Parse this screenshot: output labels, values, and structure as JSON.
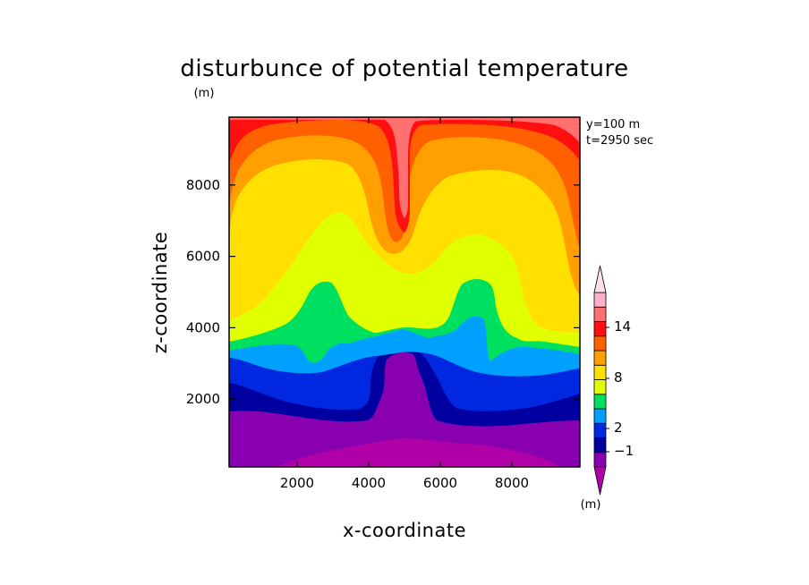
{
  "chart_data": {
    "type": "heatmap",
    "title": "disturbunce of potential temperature",
    "title_unit": "(m)",
    "xlabel": "x-coordinate",
    "ylabel": "z-coordinate",
    "xlim": [
      100,
      9900
    ],
    "ylim": [
      100,
      9900
    ],
    "xticks": [
      2000,
      4000,
      6000,
      8000
    ],
    "yticks": [
      2000,
      4000,
      6000,
      8000
    ],
    "annotations": [
      "y=100 m",
      "t=2950 sec"
    ],
    "colorbar": {
      "unit": "(m)",
      "labeled_ticks": [
        "14",
        "8",
        "2",
        "−1"
      ],
      "colors_bottom_to_top": [
        "#b000a8",
        "#8800b0",
        "#0000a0",
        "#0028e0",
        "#00a0ff",
        "#00e060",
        "#e0ff00",
        "#ffe000",
        "#ffa000",
        "#ff6000",
        "#ff1010",
        "#ff7070",
        "#ffb0c8",
        "#ffe0e8"
      ]
    }
  }
}
